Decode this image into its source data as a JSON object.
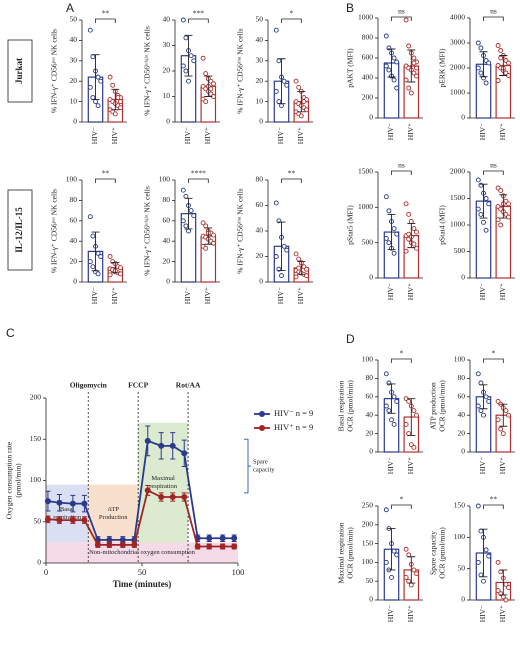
{
  "labels": [
    "A",
    "B",
    "C",
    "D"
  ],
  "row_labels": [
    "Jurkat",
    "IL-12/IL-15"
  ],
  "chart_data": [
    {
      "type": "bar",
      "ylabel": [
        "% IFN-γ⁺ CD56ᵖᵒˢ NK cells"
      ],
      "categories": [
        "HIV⁻",
        "HIV⁺"
      ],
      "colors": [
        "#2b3a8c",
        "#b03030"
      ],
      "values": [
        22,
        11
      ],
      "errors": [
        11,
        5
      ],
      "points": [
        [
          45,
          32,
          25,
          22,
          20,
          17,
          12,
          10,
          8
        ],
        [
          22,
          18,
          15,
          13,
          12,
          11,
          10,
          9,
          8,
          7,
          6,
          5,
          4,
          12,
          10
        ]
      ],
      "significance": "**",
      "ylim": [
        0,
        50
      ],
      "yticks": [
        0,
        10,
        20,
        30,
        40,
        50
      ]
    },
    {
      "type": "bar",
      "ylabel": [
        "% IFN-γ⁺ CD56ᵇʳⁱᵍʰᵗ NK cells"
      ],
      "categories": [
        "HIV⁻",
        "HIV⁺"
      ],
      "colors": [
        "#2b3a8c",
        "#b03030"
      ],
      "values": [
        26,
        14
      ],
      "errors": [
        8,
        4
      ],
      "points": [
        [
          40,
          33,
          28,
          26,
          24,
          22,
          20,
          16
        ],
        [
          25,
          19,
          17,
          16,
          15,
          14,
          13,
          12,
          11,
          10,
          9,
          8,
          14,
          13
        ]
      ],
      "significance": "***",
      "ylim": [
        0,
        40
      ],
      "yticks": [
        0,
        10,
        20,
        30,
        40
      ]
    },
    {
      "type": "bar",
      "ylabel": [
        "% IFN-γ⁺ CD56ᵈⁱᵐ NK cells"
      ],
      "categories": [
        "HIV⁻",
        "HIV⁺"
      ],
      "colors": [
        "#2b3a8c",
        "#b03030"
      ],
      "values": [
        20,
        10
      ],
      "errors": [
        11,
        5
      ],
      "points": [
        [
          45,
          30,
          22,
          20,
          18,
          15,
          10,
          8
        ],
        [
          20,
          17,
          15,
          12,
          11,
          10,
          9,
          8,
          7,
          6,
          5,
          4,
          3,
          10
        ]
      ],
      "significance": "*",
      "ylim": [
        0,
        50
      ],
      "yticks": [
        0,
        10,
        20,
        30,
        40,
        50
      ]
    },
    {
      "type": "bar",
      "ylabel": [
        "% IFN-γ⁺ CD56ᵖᵒˢ NK cells"
      ],
      "categories": [
        "HIV⁻",
        "HIV⁺"
      ],
      "colors": [
        "#2b3a8c",
        "#b03030"
      ],
      "values": [
        30,
        14
      ],
      "errors": [
        19,
        5
      ],
      "points": [
        [
          64,
          45,
          35,
          28,
          25,
          20,
          15,
          10,
          8
        ],
        [
          25,
          20,
          18,
          15,
          14,
          13,
          12,
          10,
          9,
          8,
          7,
          12,
          11
        ]
      ],
      "significance": "**",
      "ylim": [
        0,
        100
      ],
      "yticks": [
        0,
        20,
        40,
        60,
        80,
        100
      ]
    },
    {
      "type": "bar",
      "ylabel": [
        "% IFN-γ⁺ CD56ᵇʳⁱᵍʰᵗ NK cells"
      ],
      "categories": [
        "HIV⁻",
        "HIV⁺"
      ],
      "colors": [
        "#2b3a8c",
        "#b03030"
      ],
      "values": [
        67,
        45
      ],
      "errors": [
        15,
        8
      ],
      "points": [
        [
          90,
          84,
          75,
          70,
          65,
          60,
          55,
          50
        ],
        [
          58,
          55,
          50,
          48,
          46,
          45,
          44,
          42,
          40,
          38,
          35,
          33,
          48
        ]
      ],
      "significance": "****",
      "ylim": [
        0,
        100
      ],
      "yticks": [
        0,
        20,
        40,
        60,
        80,
        100
      ]
    },
    {
      "type": "bar",
      "ylabel": [
        "% IFN-γ⁺ CD56ᵈⁱᵐ NK cells"
      ],
      "categories": [
        "HIV⁻",
        "HIV⁺"
      ],
      "colors": [
        "#2b3a8c",
        "#b03030"
      ],
      "values": [
        28,
        11
      ],
      "errors": [
        19,
        5
      ],
      "points": [
        [
          62,
          48,
          35,
          28,
          25,
          20,
          10,
          5
        ],
        [
          22,
          18,
          15,
          12,
          10,
          9,
          8,
          7,
          6,
          5,
          4,
          11
        ]
      ],
      "significance": "**",
      "ylim": [
        0,
        80
      ],
      "yticks": [
        0,
        20,
        40,
        60,
        80
      ]
    },
    {
      "type": "bar",
      "ylabel": [
        "pAKT (MFI)"
      ],
      "categories": [
        "HIV⁻",
        "HIV⁺"
      ],
      "colors": [
        "#2b3a8c",
        "#b03030"
      ],
      "values": [
        550,
        520
      ],
      "errors": [
        140,
        160
      ],
      "points": [
        [
          820,
          700,
          650,
          600,
          560,
          520,
          480,
          420,
          380,
          300
        ],
        [
          980,
          720,
          650,
          600,
          560,
          520,
          500,
          480,
          450,
          420,
          380,
          300,
          250,
          550,
          500
        ]
      ],
      "significance": "ns",
      "ylim": [
        0,
        1000
      ],
      "yticks": [
        0,
        200,
        400,
        600,
        800,
        1000
      ]
    },
    {
      "type": "bar",
      "ylabel": [
        "pERK (MFI)"
      ],
      "categories": [
        "HIV⁻",
        "HIV⁺"
      ],
      "colors": [
        "#2b3a8c",
        "#b03030"
      ],
      "values": [
        2150,
        2100
      ],
      "errors": [
        500,
        400
      ],
      "points": [
        [
          3000,
          2800,
          2500,
          2300,
          2200,
          2000,
          1800,
          1600,
          1400
        ],
        [
          2900,
          2700,
          2500,
          2300,
          2200,
          2100,
          2000,
          1900,
          1800,
          1700,
          1500,
          2400,
          2000
        ]
      ],
      "significance": "ns",
      "ylim": [
        0,
        4000
      ],
      "yticks": [
        0,
        1000,
        2000,
        3000,
        4000
      ]
    },
    {
      "type": "bar",
      "ylabel": [
        "pStat5 (MFI)"
      ],
      "categories": [
        "HIV⁻",
        "HIV⁺"
      ],
      "colors": [
        "#2b3a8c",
        "#b03030"
      ],
      "values": [
        650,
        600
      ],
      "errors": [
        250,
        170
      ],
      "points": [
        [
          1150,
          950,
          800,
          700,
          620,
          560,
          500,
          420,
          350
        ],
        [
          1050,
          900,
          800,
          700,
          650,
          600,
          550,
          500,
          480,
          420,
          380,
          620,
          580
        ]
      ],
      "significance": "ns",
      "ylim": [
        0,
        1500
      ],
      "yticks": [
        0,
        500,
        1000,
        1500
      ]
    },
    {
      "type": "bar",
      "ylabel": [
        "pStat4 (MFI)"
      ],
      "categories": [
        "HIV⁻",
        "HIV⁺"
      ],
      "colors": [
        "#2b3a8c",
        "#b03030"
      ],
      "values": [
        1450,
        1350
      ],
      "errors": [
        320,
        220
      ],
      "points": [
        [
          1850,
          1750,
          1600,
          1500,
          1400,
          1300,
          1200,
          1050,
          900
        ],
        [
          1700,
          1650,
          1550,
          1450,
          1400,
          1350,
          1300,
          1250,
          1200,
          1150,
          1100,
          1000,
          1400
        ]
      ],
      "significance": "ns",
      "ylim": [
        0,
        2000
      ],
      "yticks": [
        0,
        500,
        1000,
        1500,
        2000
      ]
    },
    {
      "type": "line",
      "ylabel": [
        "Oxygen consumption rate",
        "(pmol/min)"
      ],
      "xlabel": "Time (minutes)",
      "x": [
        1,
        7,
        14,
        20,
        27,
        33,
        40,
        46,
        53,
        60,
        66,
        72,
        79,
        85,
        92,
        98
      ],
      "series": [
        {
          "name": "HIV⁻ n = 9",
          "color": "#2b3a8c",
          "values": [
            75,
            73,
            72,
            72,
            28,
            28,
            28,
            28,
            148,
            142,
            142,
            133,
            30,
            30,
            30,
            30
          ],
          "errors": [
            12,
            10,
            10,
            10,
            4,
            4,
            4,
            4,
            18,
            16,
            16,
            16,
            4,
            4,
            4,
            4
          ]
        },
        {
          "name": "HIV⁺ n = 9",
          "color": "#a02424",
          "values": [
            53,
            52,
            52,
            52,
            22,
            22,
            22,
            22,
            88,
            80,
            80,
            80,
            20,
            20,
            20,
            20
          ],
          "errors": [
            4,
            4,
            4,
            4,
            3,
            3,
            3,
            3,
            6,
            5,
            5,
            5,
            3,
            3,
            3,
            3
          ]
        }
      ],
      "injections": [
        {
          "label": "Oligomycin",
          "x": 22
        },
        {
          "label": "FCCP",
          "x": 48
        },
        {
          "label": "Rot/AA",
          "x": 74
        }
      ],
      "regions": [
        {
          "label": [
            "Non-mitochondrial oxygen consumption"
          ],
          "x": [
            0,
            100
          ],
          "y": [
            0,
            25
          ],
          "color": "#f3d3e4"
        },
        {
          "label": [
            "Basal",
            "respiration"
          ],
          "x": [
            0,
            22
          ],
          "y": [
            25,
            95
          ],
          "color": "#d3d9f0"
        },
        {
          "label": [
            "ATP",
            "Production"
          ],
          "x": [
            22,
            48
          ],
          "y": [
            25,
            95
          ],
          "color": "#f6dcc6"
        },
        {
          "label": [
            "Maximal",
            "respiration"
          ],
          "x": [
            48,
            74
          ],
          "y": [
            25,
            170
          ],
          "color": "#d6e6c8"
        }
      ],
      "spare": {
        "label": [
          "Spare",
          "capacity"
        ],
        "y": [
          85,
          150
        ],
        "color": "#3a6bc4"
      },
      "xlim": [
        0,
        100
      ],
      "xticks": [
        0,
        50,
        100
      ],
      "ylim": [
        0,
        200
      ],
      "yticks": [
        0,
        50,
        100,
        150,
        200
      ]
    },
    {
      "type": "bar",
      "ylabel": [
        "Basal respiration",
        "OCR (pmol/min)"
      ],
      "categories": [
        "HIV⁻",
        "HIV⁺"
      ],
      "colors": [
        "#2b3a8c",
        "#b03030"
      ],
      "values": [
        58,
        38
      ],
      "errors": [
        16,
        20
      ],
      "points": [
        [
          85,
          75,
          65,
          60,
          55,
          50,
          45,
          35,
          30
        ],
        [
          58,
          55,
          50,
          45,
          40,
          30,
          20,
          8,
          5
        ]
      ],
      "significance": "*",
      "ylim": [
        0,
        100
      ],
      "yticks": [
        0,
        20,
        40,
        60,
        80,
        100
      ]
    },
    {
      "type": "bar",
      "ylabel": [
        "ATP production",
        "OCR (pmol/min)"
      ],
      "categories": [
        "HIV⁻",
        "HIV⁺"
      ],
      "colors": [
        "#2b3a8c",
        "#b03030"
      ],
      "values": [
        60,
        40
      ],
      "errors": [
        13,
        12
      ],
      "points": [
        [
          85,
          75,
          65,
          60,
          55,
          50,
          45,
          40
        ],
        [
          55,
          52,
          48,
          45,
          40,
          35,
          25,
          20
        ]
      ],
      "significance": "*",
      "ylim": [
        0,
        100
      ],
      "yticks": [
        0,
        20,
        40,
        60,
        80,
        100
      ]
    },
    {
      "type": "bar",
      "ylabel": [
        "Maximal respiration",
        "OCR (pmol/min)"
      ],
      "categories": [
        "HIV⁻",
        "HIV⁺"
      ],
      "colors": [
        "#2b3a8c",
        "#b03030"
      ],
      "values": [
        135,
        80
      ],
      "errors": [
        55,
        35
      ],
      "points": [
        [
          240,
          190,
          150,
          130,
          120,
          100,
          80,
          60
        ],
        [
          135,
          120,
          95,
          80,
          70,
          60,
          50,
          40
        ]
      ],
      "significance": "*",
      "ylim": [
        0,
        250
      ],
      "yticks": [
        0,
        50,
        100,
        150,
        200,
        250
      ]
    },
    {
      "type": "bar",
      "ylabel": [
        "Spare capacity",
        "OCR (pmol/min)"
      ],
      "categories": [
        "HIV⁻",
        "HIV⁺"
      ],
      "colors": [
        "#2b3a8c",
        "#b03030"
      ],
      "values": [
        75,
        28
      ],
      "errors": [
        38,
        20
      ],
      "points": [
        [
          150,
          110,
          100,
          80,
          70,
          60,
          40,
          30
        ],
        [
          60,
          45,
          35,
          25,
          20,
          15,
          10,
          5,
          0
        ]
      ],
      "significance": "**",
      "ylim": [
        0,
        150
      ],
      "yticks": [
        0,
        50,
        100,
        150
      ]
    }
  ]
}
